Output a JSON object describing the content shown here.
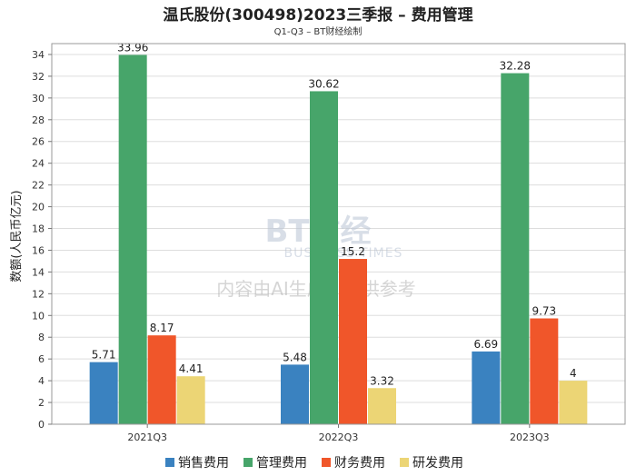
{
  "chart_data": {
    "type": "bar",
    "title": "温氏股份(300498)2023三季报 – 费用管理",
    "subtitle": "Q1-Q3 – BT财经绘制",
    "ylabel": "数额(人民币亿元)",
    "xlabel": "",
    "ylim": [
      0,
      35
    ],
    "yticks": [
      0,
      2,
      4,
      6,
      8,
      10,
      12,
      14,
      16,
      18,
      20,
      22,
      24,
      26,
      28,
      30,
      32,
      34
    ],
    "categories": [
      "2021Q3",
      "2022Q3",
      "2023Q3"
    ],
    "series": [
      {
        "name": "销售费用",
        "color": "#3a82c0",
        "values": [
          5.71,
          5.48,
          6.69
        ],
        "labels": [
          "5.71",
          "5.48",
          "6.69"
        ]
      },
      {
        "name": "管理费用",
        "color": "#47a56a",
        "values": [
          33.96,
          30.62,
          32.28
        ],
        "labels": [
          "33.96",
          "30.62",
          "32.28"
        ]
      },
      {
        "name": "财务费用",
        "color": "#f0562a",
        "values": [
          8.17,
          15.2,
          9.73
        ],
        "labels": [
          "8.17",
          "15.2",
          "9.73"
        ]
      },
      {
        "name": "研发费用",
        "color": "#ecd575",
        "values": [
          4.41,
          3.32,
          4
        ],
        "labels": [
          "4.41",
          "3.32",
          "4"
        ]
      }
    ],
    "legend": "bottom",
    "grid": true
  },
  "watermark": {
    "brand": "BT财经",
    "brand_en": "BUSINESS TIMES",
    "notice": "内容由AI生成，仅供参考"
  }
}
